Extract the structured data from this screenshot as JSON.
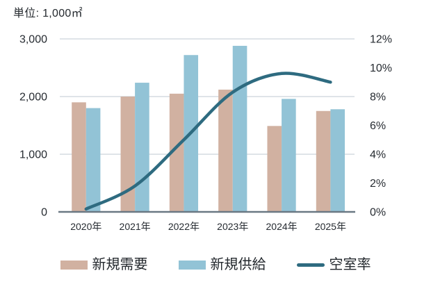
{
  "chart_data": {
    "type": "bar+line combo",
    "unit_label": "単位: 1,000㎡",
    "categories": [
      "2020年",
      "2021年",
      "2022年",
      "2023年",
      "2024年",
      "2025年"
    ],
    "series": [
      {
        "name": "新規需要",
        "type": "bar",
        "axis": "left",
        "values": [
          1900,
          2000,
          2050,
          2120,
          1490,
          1750
        ]
      },
      {
        "name": "新規供給",
        "type": "bar",
        "axis": "left",
        "values": [
          1800,
          2240,
          2720,
          2880,
          1960,
          1780
        ]
      },
      {
        "name": "空室率",
        "type": "line",
        "axis": "right",
        "unit": "%",
        "values": [
          0.2,
          1.8,
          5.0,
          8.3,
          9.6,
          9.0
        ]
      }
    ],
    "left_axis": {
      "min": 0,
      "max": 3000,
      "ticks": [
        {
          "label": "3,000",
          "value": 3000
        },
        {
          "label": "2,000",
          "value": 2000
        },
        {
          "label": "1,000",
          "value": 1000
        },
        {
          "label": "0",
          "value": 0
        }
      ]
    },
    "right_axis": {
      "min": 0,
      "max": 12,
      "unit": "%",
      "ticks": [
        {
          "label": "12%",
          "value": 12
        },
        {
          "label": "10%",
          "value": 10
        },
        {
          "label": "8%",
          "value": 8
        },
        {
          "label": "6%",
          "value": 6
        },
        {
          "label": "4%",
          "value": 4
        },
        {
          "label": "2%",
          "value": 2
        },
        {
          "label": "0%",
          "value": 0
        }
      ]
    },
    "grid": "horizontal gridlines at left-axis tick values only",
    "legend_position": "bottom"
  },
  "colors": {
    "demand_bar": "#d1b1a1",
    "supply_bar": "#92c3d6",
    "vacancy_line": "#2e6b80",
    "axis_line": "#6a7883",
    "gridline": "#ccd3d9",
    "label_text": "#262b31"
  }
}
